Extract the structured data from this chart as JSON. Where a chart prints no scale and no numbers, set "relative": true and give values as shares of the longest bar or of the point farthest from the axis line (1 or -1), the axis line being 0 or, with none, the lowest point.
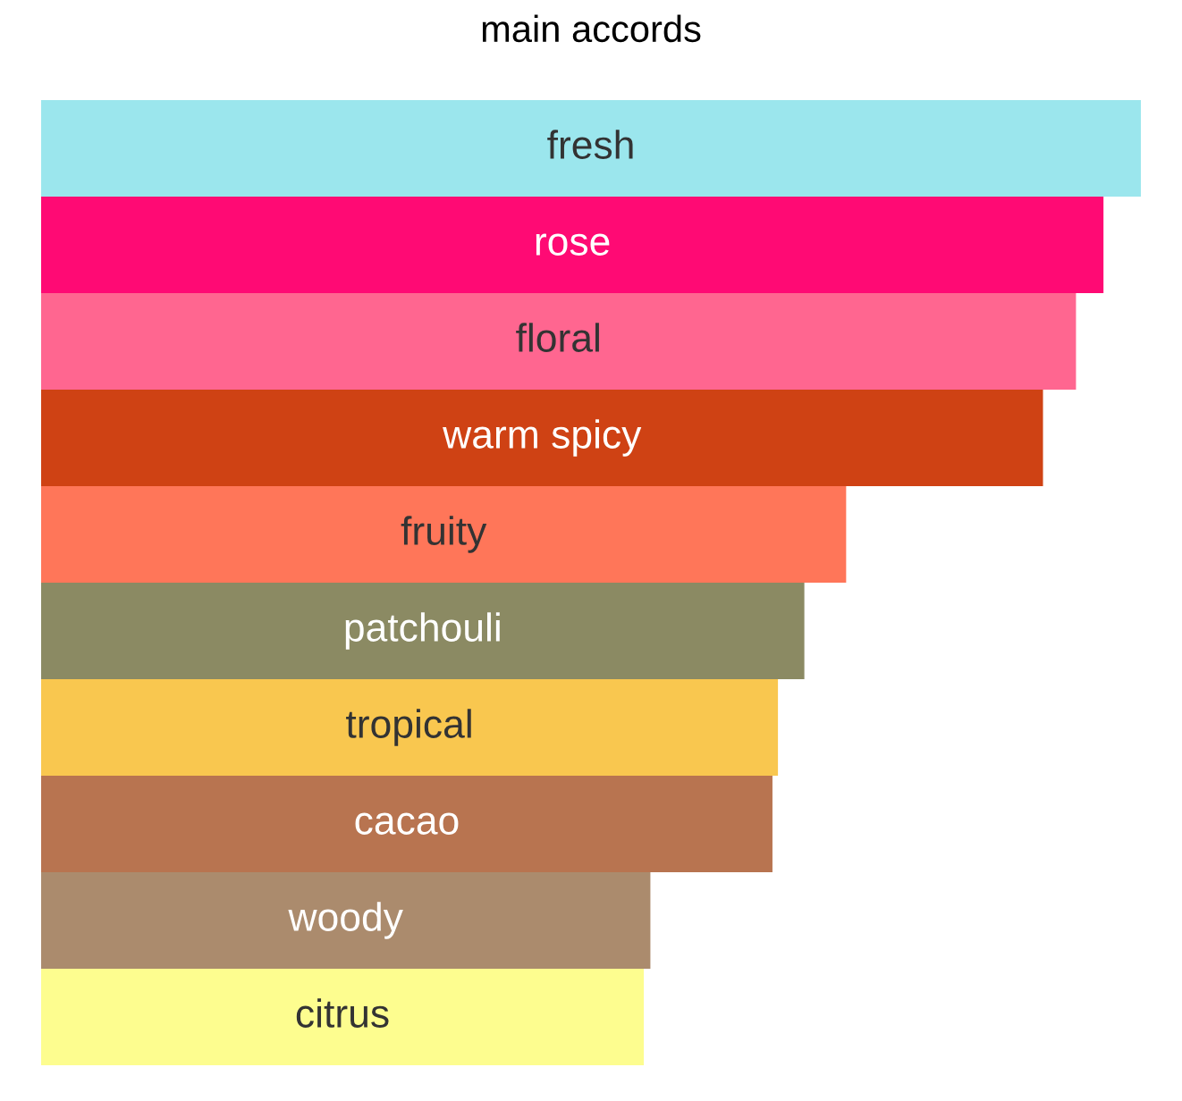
{
  "chart_data": {
    "type": "bar",
    "orientation": "horizontal",
    "relative": true,
    "title": "main accords",
    "categories": [
      "fresh",
      "rose",
      "floral",
      "warm spicy",
      "fruity",
      "patchouli",
      "tropical",
      "cacao",
      "woody",
      "citrus"
    ],
    "values": [
      1,
      0.966,
      0.941,
      0.911,
      0.732,
      0.694,
      0.67,
      0.665,
      0.554,
      0.548
    ],
    "colors": [
      "#9be6ed",
      "#ff0a74",
      "#ff6690",
      "#cf4214",
      "#ff7659",
      "#8b8a63",
      "#f9c74f",
      "#b87450",
      "#ab8b6d",
      "#fdfd8f"
    ]
  }
}
